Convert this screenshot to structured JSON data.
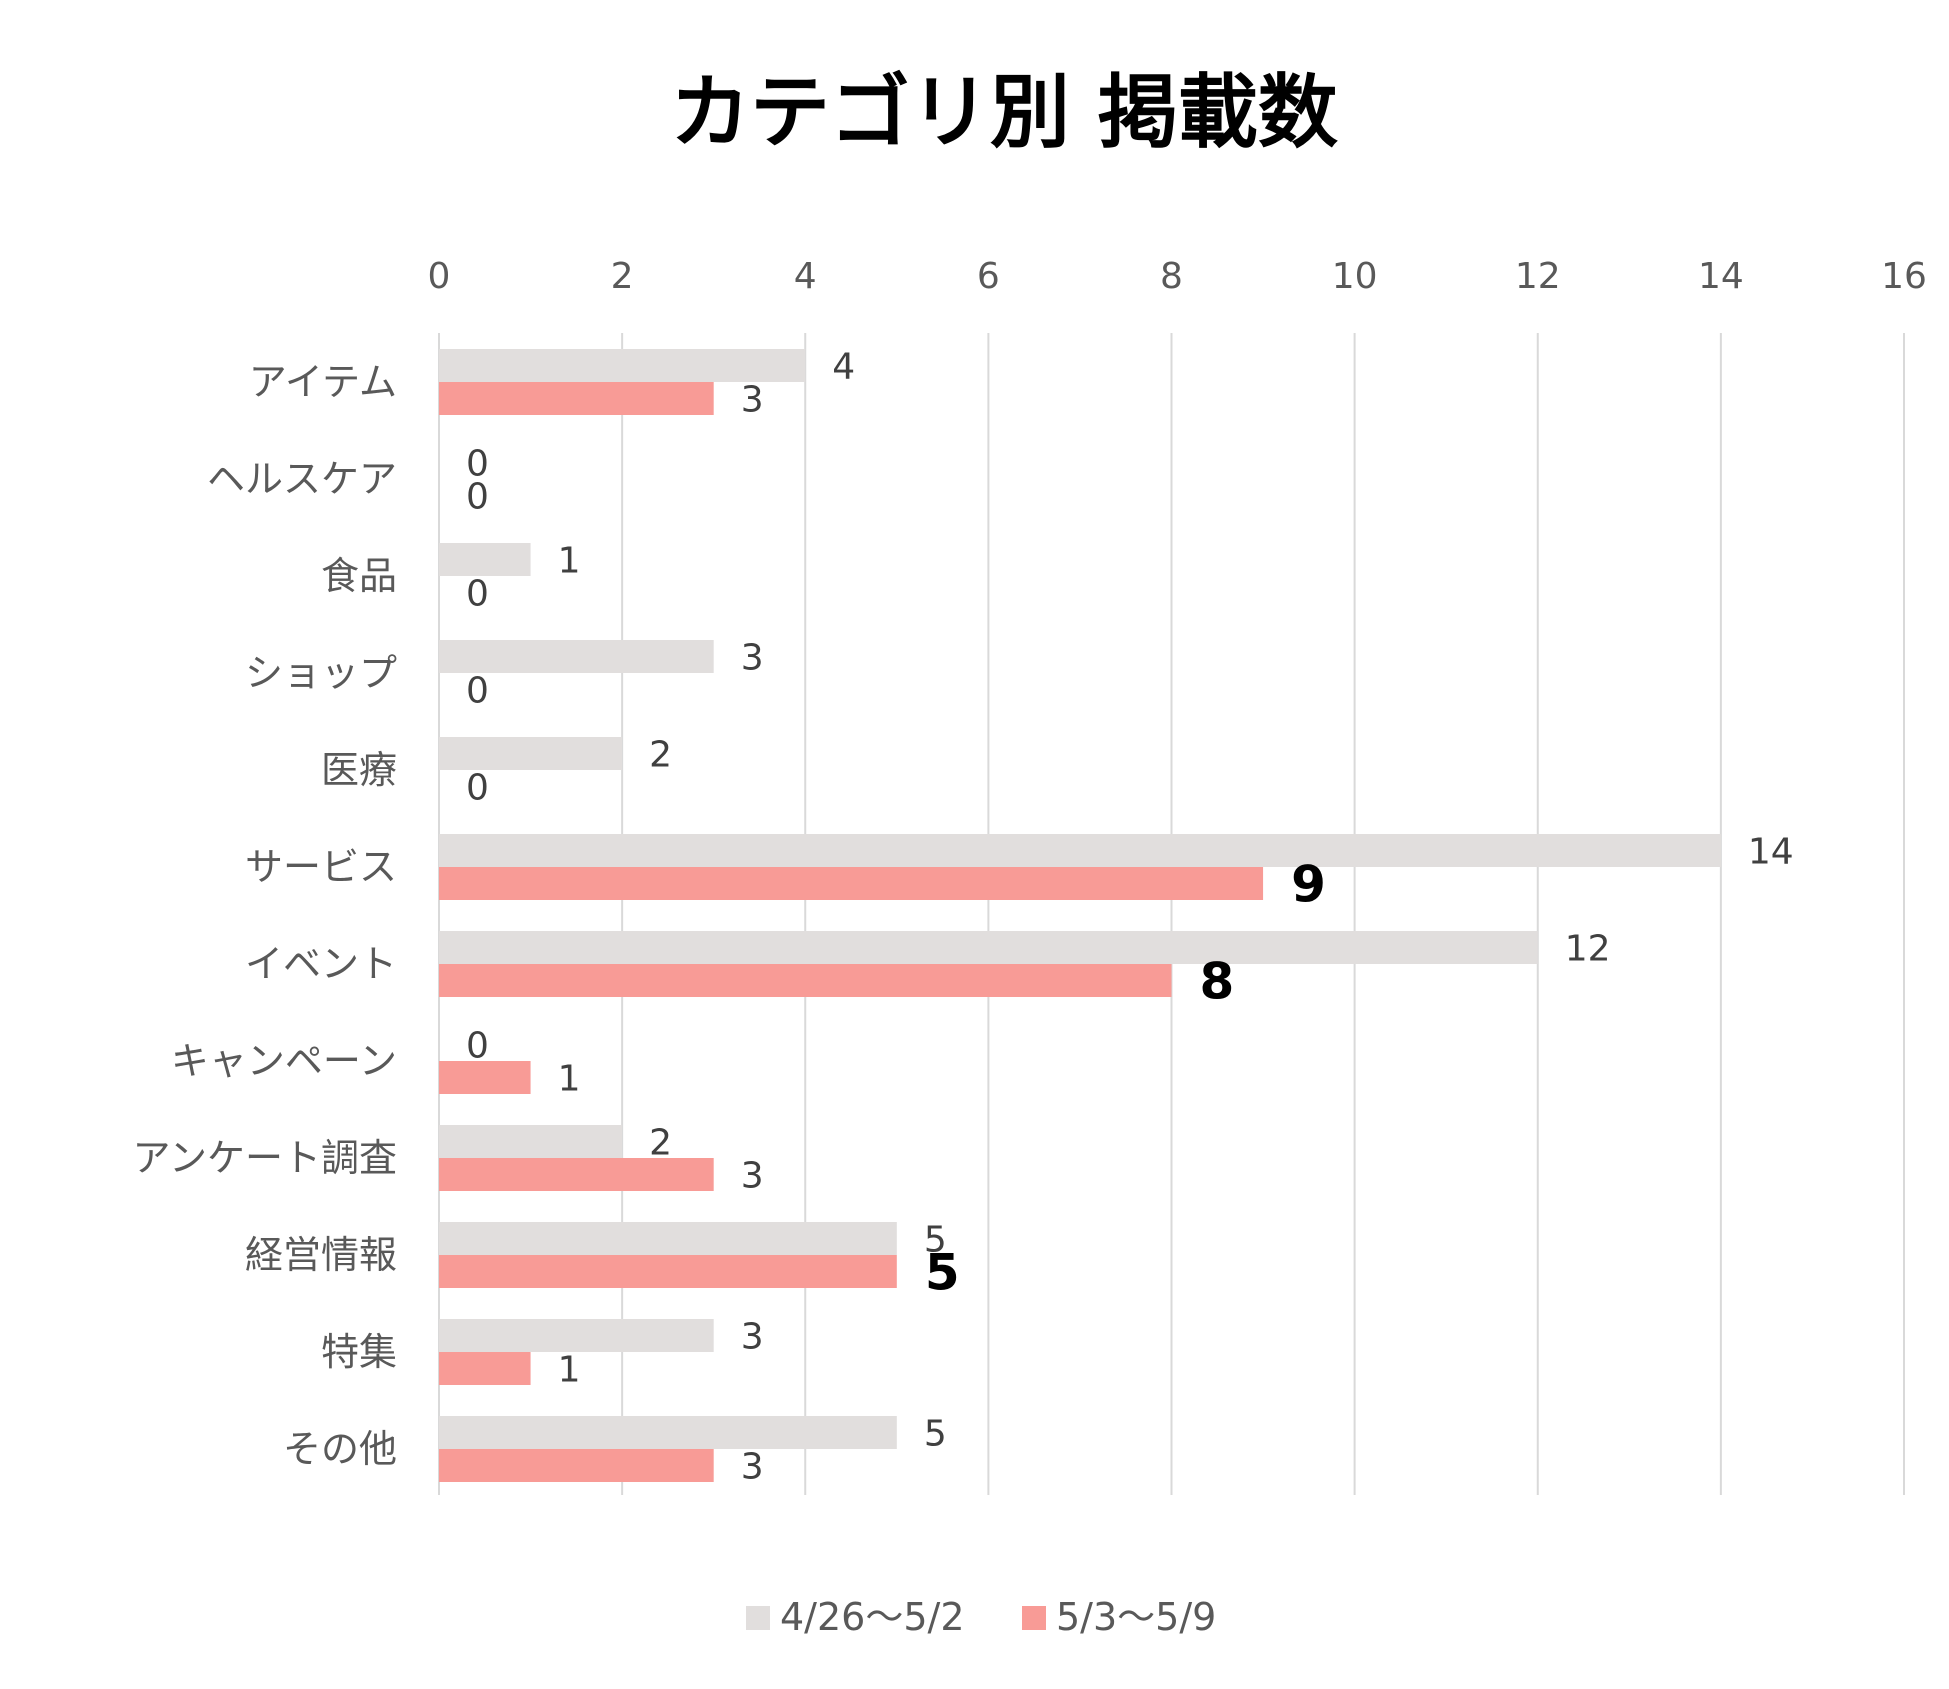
{
  "chart_data": {
    "type": "bar",
    "orientation": "horizontal",
    "title": "カテゴリ別 掲載数",
    "categories": [
      "アイテム",
      "ヘルスケア",
      "食品",
      "ショップ",
      "医療",
      "サービス",
      "イベント",
      "キャンペーン",
      "アンケート調査",
      "経営情報",
      "特集",
      "その他"
    ],
    "series": [
      {
        "name": "4/26〜5/2",
        "color": "#e1dedd",
        "values": [
          4,
          0,
          1,
          3,
          2,
          14,
          12,
          0,
          2,
          5,
          3,
          5
        ],
        "bold_labels": []
      },
      {
        "name": "5/3〜5/9",
        "color": "#f89b96",
        "values": [
          3,
          0,
          0,
          0,
          0,
          9,
          8,
          1,
          3,
          5,
          1,
          3
        ],
        "bold_labels": [
          5,
          6,
          9
        ]
      }
    ],
    "xlim": [
      0,
      16
    ],
    "x_ticks": [
      0,
      2,
      4,
      6,
      8,
      10,
      12,
      14,
      16
    ],
    "x_axis_position": "top",
    "grid": true,
    "legend_position": "bottom"
  }
}
